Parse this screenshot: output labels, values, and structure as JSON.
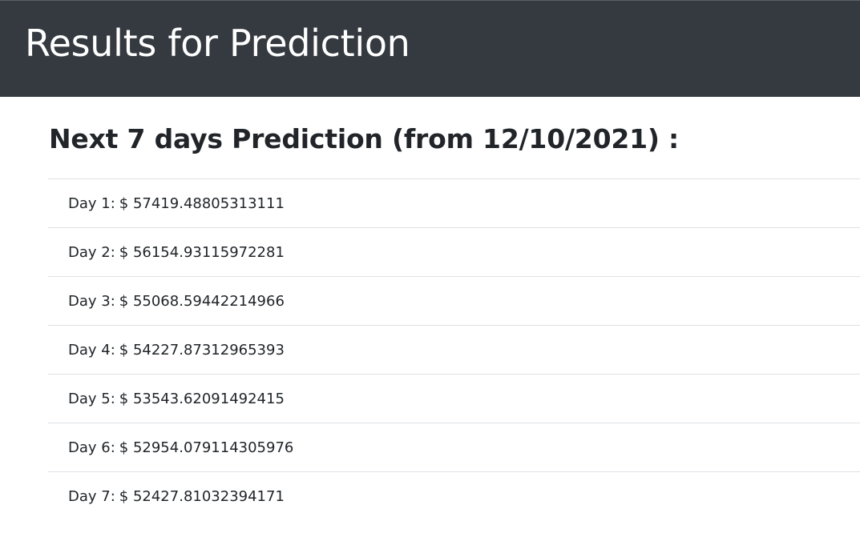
{
  "header": {
    "title": "Results for Prediction"
  },
  "main": {
    "heading": "Next 7 days Prediction (from 12/10/2021) :",
    "predictions": [
      {
        "label": "Day 1:",
        "value": "$ 57419.48805313111"
      },
      {
        "label": "Day 2:",
        "value": "$ 56154.93115972281"
      },
      {
        "label": "Day 3:",
        "value": "$ 55068.59442214966"
      },
      {
        "label": "Day 4:",
        "value": "$ 54227.87312965393"
      },
      {
        "label": "Day 5:",
        "value": "$ 53543.62091492415"
      },
      {
        "label": "Day 6:",
        "value": "$ 52954.079114305976"
      },
      {
        "label": "Day 7:",
        "value": "$ 52427.81032394171"
      }
    ]
  },
  "colors": {
    "header_background": "#343a40",
    "header_text": "#ffffff",
    "body_text": "#212529",
    "divider": "#dee2e6"
  }
}
